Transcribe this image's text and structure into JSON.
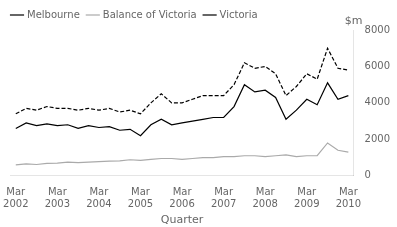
{
  "chart_data": {
    "type": "line",
    "xlabel": "Quarter",
    "ylabel": "$m",
    "categories": [
      "Mar\n2002",
      null,
      null,
      null,
      "Mar\n2003",
      null,
      null,
      null,
      "Mar\n2004",
      null,
      null,
      null,
      "Mar\n2005",
      null,
      null,
      null,
      "Mar\n2006",
      null,
      null,
      null,
      "Mar\n2007",
      null,
      null,
      null,
      "Mar\n2008",
      null,
      null,
      null,
      "Mar\n2009",
      null,
      null,
      null,
      "Mar\n2010"
    ],
    "series": [
      {
        "name": "Melbourne",
        "color": "#000000",
        "line_style": "solid",
        "values": [
          2600,
          2900,
          2750,
          2850,
          2750,
          2800,
          2600,
          2750,
          2650,
          2700,
          2500,
          2550,
          2200,
          2800,
          3100,
          2800,
          2900,
          3000,
          3100,
          3200,
          3200,
          3800,
          5000,
          4600,
          4700,
          4300,
          3100,
          3600,
          4200,
          3900,
          5100,
          4200,
          4400
        ]
      },
      {
        "name": "Balance of Victoria",
        "color": "#aaaaaa",
        "line_style": "solid",
        "values": [
          600,
          650,
          620,
          680,
          700,
          750,
          720,
          750,
          780,
          800,
          820,
          880,
          850,
          900,
          950,
          950,
          900,
          950,
          1000,
          1000,
          1050,
          1050,
          1100,
          1100,
          1050,
          1100,
          1150,
          1050,
          1100,
          1100,
          1800,
          1400,
          1300
        ]
      },
      {
        "name": "Victoria",
        "color": "#000000",
        "line_style": "dashed",
        "values": [
          3400,
          3700,
          3600,
          3800,
          3700,
          3700,
          3600,
          3700,
          3600,
          3700,
          3500,
          3600,
          3400,
          4000,
          4500,
          4000,
          4000,
          4200,
          4400,
          4400,
          4400,
          5000,
          6200,
          5900,
          6000,
          5600,
          4400,
          4900,
          5600,
          5300,
          7000,
          5900,
          5800
        ]
      }
    ],
    "ylim": [
      0,
      8000
    ],
    "yticks": [
      0,
      2000,
      4000,
      6000,
      8000
    ],
    "grid": false,
    "legend": "upper left"
  }
}
